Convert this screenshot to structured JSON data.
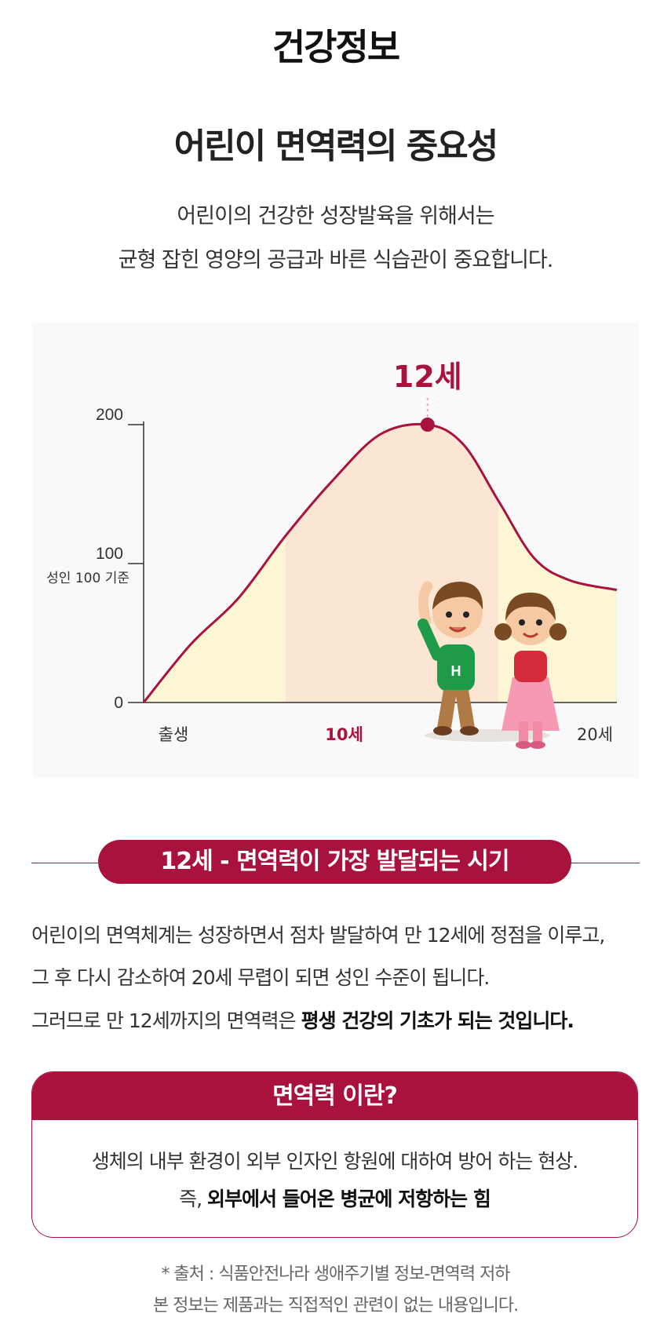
{
  "page_title": "건강정보",
  "section_title": "어린이 면역력의 중요성",
  "intro": {
    "line1": "어린이의 건강한 성장발육을 위해서는",
    "line2": "균형 잡힌 영양의 공급과 바른 식습관이 중요합니다."
  },
  "chart_data": {
    "type": "area",
    "title": "",
    "xlabel": "",
    "ylabel": "",
    "ylim": [
      0,
      200
    ],
    "y_ticks": [
      "0",
      "100",
      "200"
    ],
    "y_reference_label": "성인 100 기준",
    "x_tick_labels": [
      "출생",
      "10세",
      "20세"
    ],
    "x_tick_values": [
      0,
      10,
      20
    ],
    "highlight_tick": "10세",
    "peak_label": "12세",
    "peak": {
      "x": 12,
      "y": 200
    },
    "series": [
      {
        "x": [
          0,
          2,
          4,
          6,
          8,
          10,
          12,
          13.5,
          15,
          16.5,
          18,
          20
        ],
        "values": [
          0,
          42,
          75,
          120,
          160,
          193,
          200,
          186,
          145,
          104,
          88,
          81
        ]
      }
    ],
    "shaded_band": {
      "from": 6,
      "to": 15
    },
    "colors": {
      "line": "#a8123d",
      "area": "#fdf6d4",
      "band": "#fbe6d4",
      "text_accent": "#a8123d"
    }
  },
  "banner": "12세 - 면역력이 가장 발달되는 시기",
  "body": {
    "p1": "어린이의 면역체계는 성장하면서 점차 발달하여 만 12세에 정점을 이루고,",
    "p2": "그 후 다시 감소하여 20세 무렵이 되면 성인 수준이 됩니다.",
    "p3_normal": "그러므로 만 12세까지의 면역력은 ",
    "p3_bold": "평생 건강의 기초가 되는 것입니다."
  },
  "definition": {
    "title": "면역력 이란?",
    "line1": "생체의 내부 환경이 외부 인자인 항원에 대하여 방어 하는 현상.",
    "line2_normal": "즉, ",
    "line2_bold": "외부에서 들어온 병균에 저항하는 힘"
  },
  "footnote": {
    "line1": "* 출처 : 식품안전나라 생애주기별 정보-면역력 저하",
    "line2": "본 정보는 제품과는 직접적인 관련이 없는 내용입니다."
  }
}
